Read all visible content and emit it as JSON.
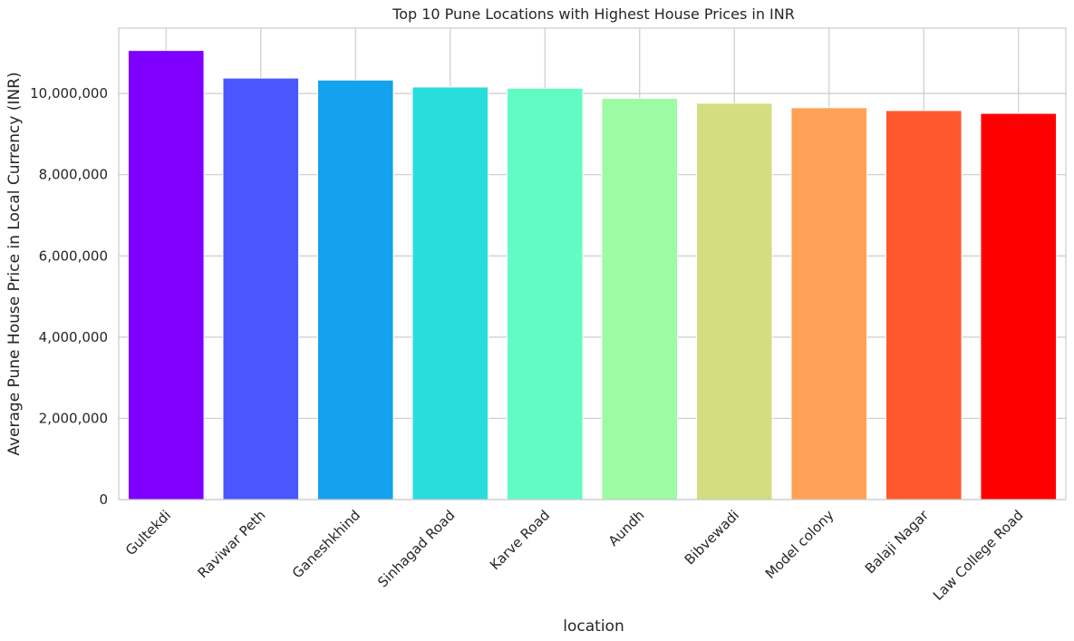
{
  "chart_data": {
    "type": "bar",
    "title": "Top 10 Pune Locations with Highest House Prices in INR",
    "xlabel": "location",
    "ylabel": "Average Pune House Price in Local Currency (INR)",
    "categories": [
      "Gultekdi",
      "Raviwar Peth",
      "Ganeshkhind",
      "Sinhagad Road",
      "Karve Road",
      "Aundh",
      "Bibvewadi",
      "Model colony",
      "Balaji Nagar",
      "Law College Road"
    ],
    "values": [
      11060000,
      10380000,
      10330000,
      10160000,
      10130000,
      9880000,
      9760000,
      9650000,
      9580000,
      9510000
    ],
    "colors": [
      "#8000ff",
      "#4a57fd",
      "#14a1ee",
      "#2adddd",
      "#62fbc4",
      "#9cfba3",
      "#d4dd80",
      "#ffa156",
      "#ff582c",
      "#ff0000"
    ],
    "ylim": [
      0,
      11610000
    ],
    "yticks": [
      0,
      2000000,
      4000000,
      6000000,
      8000000,
      10000000
    ],
    "ytick_labels": [
      "0",
      "2,000,000",
      "4,000,000",
      "6,000,000",
      "8,000,000",
      "10,000,000"
    ],
    "grid": true
  }
}
